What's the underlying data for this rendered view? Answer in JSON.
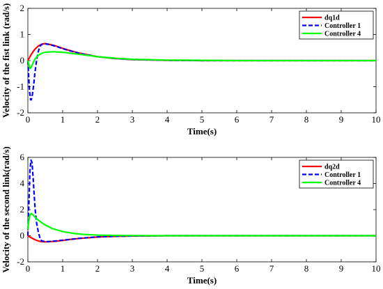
{
  "chart_data": [
    {
      "type": "line",
      "title": "",
      "xlabel": "Time(s)",
      "ylabel": "Velocity of the fist link (rad/s)",
      "xlim": [
        0,
        10
      ],
      "ylim": [
        -2,
        2
      ],
      "xticks": [
        "0",
        "1",
        "2",
        "3",
        "4",
        "5",
        "6",
        "7",
        "8",
        "9",
        "10"
      ],
      "yticks": [
        "-2",
        "-1",
        "0",
        "1",
        "2"
      ],
      "grid": false,
      "legend_position": "top-right",
      "series": [
        {
          "name": "dq1d",
          "color": "#ff0000",
          "style": "solid",
          "x": [
            0,
            0.05,
            0.1,
            0.15,
            0.2,
            0.3,
            0.4,
            0.5,
            0.6,
            0.8,
            1.0,
            1.2,
            1.5,
            2.0,
            2.5,
            3.0,
            4.0,
            5.0,
            6.0,
            7.0,
            8.0,
            9.0,
            10.0
          ],
          "y": [
            0,
            0.12,
            0.24,
            0.34,
            0.43,
            0.56,
            0.63,
            0.65,
            0.63,
            0.56,
            0.47,
            0.39,
            0.28,
            0.15,
            0.08,
            0.04,
            0.01,
            0.0,
            0.0,
            0.0,
            0.0,
            0.0,
            0.0
          ]
        },
        {
          "name": "Controller 1",
          "color": "#0000ff",
          "style": "dashed",
          "x": [
            0,
            0.02,
            0.05,
            0.08,
            0.1,
            0.13,
            0.17,
            0.2,
            0.25,
            0.3,
            0.35,
            0.4,
            0.5,
            0.6,
            0.8,
            1.0,
            1.2,
            1.5,
            2.0,
            2.5,
            3.0,
            4.0,
            5.0,
            6.0,
            7.0,
            8.0,
            9.0,
            10.0
          ],
          "y": [
            0,
            -0.5,
            -1.2,
            -1.5,
            -1.5,
            -1.3,
            -0.9,
            -0.5,
            0.0,
            0.35,
            0.55,
            0.62,
            0.64,
            0.62,
            0.55,
            0.46,
            0.38,
            0.27,
            0.15,
            0.08,
            0.04,
            0.01,
            0.0,
            0.0,
            0.0,
            0.0,
            0.0,
            0.0
          ]
        },
        {
          "name": "Controller 4",
          "color": "#00ff00",
          "style": "solid",
          "x": [
            0,
            0.03,
            0.06,
            0.1,
            0.15,
            0.2,
            0.3,
            0.4,
            0.5,
            0.7,
            1.0,
            1.3,
            1.6,
            2.0,
            2.5,
            3.0,
            4.0,
            5.0,
            6.0,
            7.0,
            8.0,
            9.0,
            10.0
          ],
          "y": [
            0,
            -0.15,
            -0.3,
            -0.25,
            -0.1,
            0.05,
            0.2,
            0.28,
            0.32,
            0.34,
            0.32,
            0.27,
            0.22,
            0.15,
            0.09,
            0.05,
            0.02,
            0.01,
            0.0,
            0.0,
            0.0,
            0.0,
            0.0
          ]
        }
      ]
    },
    {
      "type": "line",
      "title": "",
      "xlabel": "Time(s)",
      "ylabel": "Velocity of the second link(rad/s)",
      "xlim": [
        0,
        10
      ],
      "ylim": [
        -2,
        6
      ],
      "xticks": [
        "0",
        "1",
        "2",
        "3",
        "4",
        "5",
        "6",
        "7",
        "8",
        "9",
        "10"
      ],
      "yticks": [
        "-2",
        "0",
        "2",
        "4",
        "6"
      ],
      "grid": false,
      "legend_position": "top-right",
      "series": [
        {
          "name": "dq2d",
          "color": "#ff0000",
          "style": "solid",
          "x": [
            0,
            0.05,
            0.1,
            0.2,
            0.3,
            0.4,
            0.5,
            0.6,
            0.8,
            1.0,
            1.2,
            1.5,
            2.0,
            2.5,
            3.0,
            4.0,
            5.0,
            6.0,
            7.0,
            8.0,
            9.0,
            10.0
          ],
          "y": [
            0,
            -0.08,
            -0.16,
            -0.3,
            -0.4,
            -0.45,
            -0.47,
            -0.46,
            -0.42,
            -0.36,
            -0.29,
            -0.2,
            -0.1,
            -0.05,
            -0.02,
            0.0,
            0.0,
            0.0,
            0.0,
            0.0,
            0.0,
            0.0
          ]
        },
        {
          "name": "Controller 1",
          "color": "#0000ff",
          "style": "dashed",
          "x": [
            0,
            0.03,
            0.06,
            0.09,
            0.12,
            0.15,
            0.18,
            0.21,
            0.25,
            0.3,
            0.35,
            0.4,
            0.5,
            0.6,
            0.8,
            1.0,
            1.2,
            1.5,
            2.0,
            2.5,
            3.0,
            4.0,
            5.0,
            6.0,
            7.0,
            8.0,
            9.0,
            10.0
          ],
          "y": [
            0,
            2.5,
            5.0,
            5.8,
            5.6,
            4.5,
            3.2,
            2.0,
            1.0,
            0.3,
            -0.2,
            -0.4,
            -0.45,
            -0.45,
            -0.4,
            -0.34,
            -0.28,
            -0.19,
            -0.09,
            -0.04,
            -0.02,
            0.0,
            0.0,
            0.0,
            0.0,
            0.0,
            0.0,
            0.0
          ]
        },
        {
          "name": "Controller 4",
          "color": "#00ff00",
          "style": "solid",
          "x": [
            0,
            0.03,
            0.06,
            0.1,
            0.15,
            0.2,
            0.3,
            0.4,
            0.5,
            0.7,
            1.0,
            1.3,
            1.6,
            2.0,
            2.5,
            3.0,
            4.0,
            5.0,
            6.0,
            7.0,
            8.0,
            9.0,
            10.0
          ],
          "y": [
            0.5,
            1.2,
            1.6,
            1.7,
            1.6,
            1.45,
            1.2,
            1.0,
            0.82,
            0.55,
            0.32,
            0.18,
            0.1,
            0.05,
            0.02,
            0.01,
            0.0,
            0.0,
            0.0,
            0.0,
            0.0,
            0.0,
            0.0
          ]
        }
      ]
    }
  ]
}
